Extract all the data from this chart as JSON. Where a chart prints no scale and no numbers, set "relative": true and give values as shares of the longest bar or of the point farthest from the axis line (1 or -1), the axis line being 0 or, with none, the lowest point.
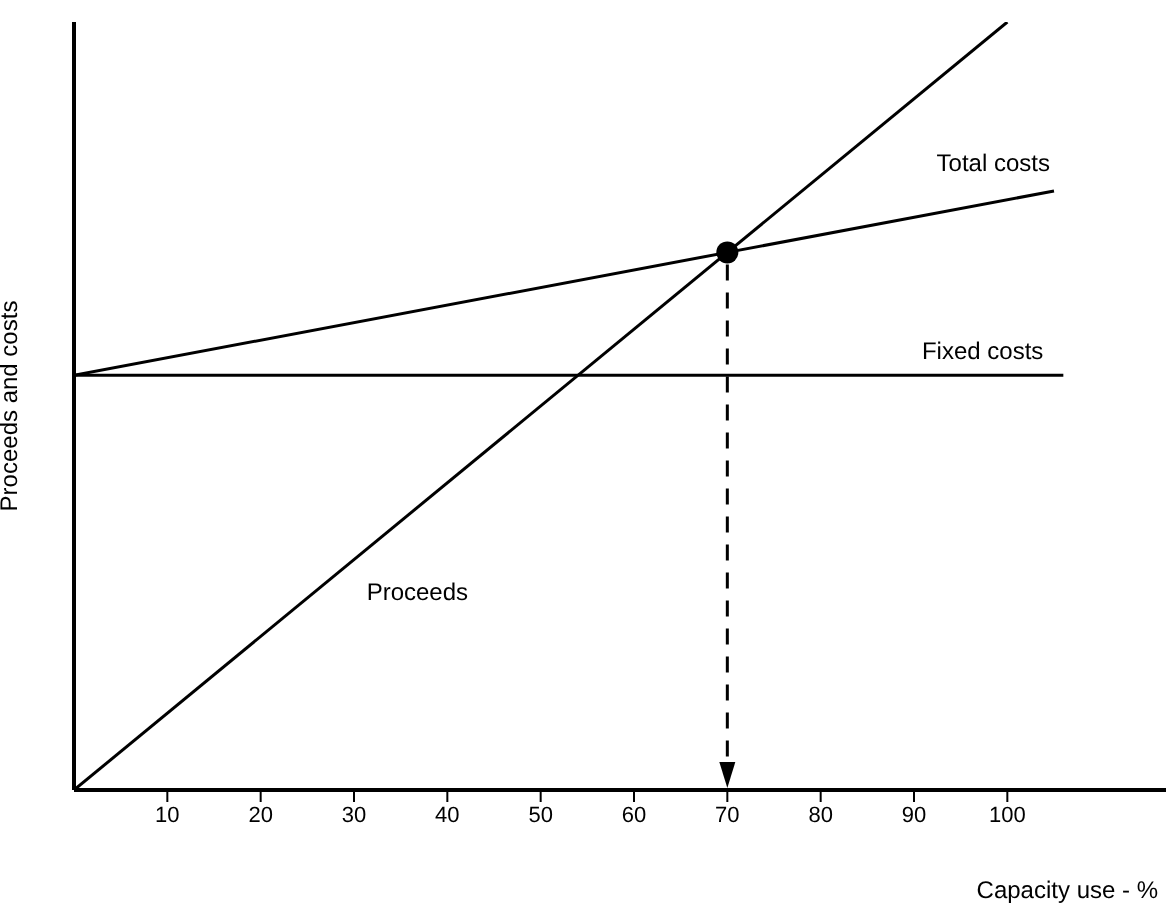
{
  "chart_data": {
    "type": "line",
    "xlabel": "Capacity use - %",
    "ylabel": "Proceeds and costs",
    "relative": true,
    "xlim": [
      0,
      117
    ],
    "xticks": [
      10,
      20,
      30,
      40,
      50,
      60,
      70,
      80,
      90,
      100
    ],
    "series": [
      {
        "name": "Total costs",
        "color": "#000000",
        "x": [
          0,
          70,
          105
        ],
        "values": [
          0.54,
          0.7,
          0.78
        ]
      },
      {
        "name": "Fixed costs",
        "color": "#000000",
        "x": [
          0,
          106
        ],
        "values": [
          0.54,
          0.54
        ]
      },
      {
        "name": "Proceeds",
        "color": "#000000",
        "x": [
          0,
          100
        ],
        "values": [
          0,
          1
        ]
      },
      {
        "type": "scatter",
        "color": "#000000",
        "marker": "circle",
        "x": [
          70
        ],
        "values": [
          0.7
        ]
      }
    ]
  }
}
